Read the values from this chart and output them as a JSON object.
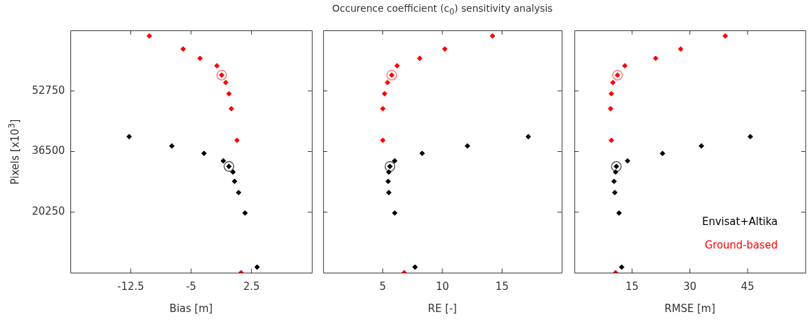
{
  "chart_data": [
    {
      "type": "scatter",
      "xlabel": "Bias [m]",
      "ylabel": "Pixels [x10$^{3}$]",
      "xlim": [
        -20,
        10
      ],
      "xticks": [
        -12.5,
        -5,
        2.5
      ],
      "ylim": [
        4000,
        69000
      ],
      "yticks": [
        20250,
        36500,
        52750
      ],
      "marker": "diamond",
      "legend": false,
      "grid": false,
      "series": [
        {
          "color": "#ff0000",
          "x": [
            -10.2,
            -6.0,
            -3.9,
            -1.8,
            -1.2,
            -0.7,
            -0.3,
            0.0,
            0.7,
            1.2
          ],
          "values": [
            67500,
            64000,
            61500,
            59500,
            57000,
            55000,
            52000,
            48000,
            39500,
            4000
          ]
        },
        {
          "color": "#000000",
          "x": [
            -12.7,
            -7.4,
            -3.4,
            -1.0,
            -0.3,
            0.2,
            0.4,
            0.9,
            1.7,
            3.2
          ],
          "values": [
            40500,
            38000,
            36000,
            34000,
            32500,
            31000,
            28500,
            25500,
            20000,
            5500
          ]
        },
        {
          "color": "#ff6666",
          "marker": "circle",
          "x": [
            -1.2
          ],
          "values": [
            57000
          ]
        },
        {
          "color": "#333333",
          "marker": "circle",
          "x": [
            -0.3
          ],
          "values": [
            32500
          ]
        }
      ]
    },
    {
      "type": "scatter",
      "title": "Occurence coefficient (c$_{0}$) sensitivity analysis",
      "xlabel": "RE [-]",
      "xlim": [
        0,
        20
      ],
      "xticks": [
        5,
        10,
        15
      ],
      "ylim": [
        4000,
        69000
      ],
      "yticks": [
        20250,
        36500,
        52750
      ],
      "tick_labels": "x",
      "marker": "diamond",
      "legend": false,
      "grid": false,
      "series": [
        {
          "color": "#ff0000",
          "x": [
            14.2,
            10.2,
            8.1,
            6.2,
            5.75,
            5.4,
            5.15,
            5.0,
            5.0,
            6.8
          ],
          "values": [
            67500,
            64000,
            61500,
            59500,
            57000,
            55000,
            52000,
            48000,
            39500,
            4000
          ]
        },
        {
          "color": "#000000",
          "x": [
            17.2,
            12.1,
            8.3,
            6.0,
            5.6,
            5.5,
            5.45,
            5.5,
            6.0,
            7.7
          ],
          "values": [
            40500,
            38000,
            36000,
            34000,
            32500,
            31000,
            28500,
            25500,
            20000,
            5500
          ]
        },
        {
          "color": "#ff6666",
          "marker": "circle",
          "x": [
            5.75
          ],
          "values": [
            57000
          ]
        },
        {
          "color": "#333333",
          "marker": "circle",
          "x": [
            5.6
          ],
          "values": [
            32500
          ]
        }
      ]
    },
    {
      "type": "scatter",
      "xlabel": "RMSE [m]",
      "xlim": [
        0,
        60
      ],
      "xticks": [
        15,
        30,
        45
      ],
      "ylim": [
        4000,
        69000
      ],
      "yticks": [
        20250,
        36500,
        52750
      ],
      "tick_labels": "x",
      "marker": "diamond",
      "legend": "bottom right",
      "grid": false,
      "series": [
        {
          "name": "Ground-based",
          "color": "#ff0000",
          "x": [
            39.2,
            27.6,
            21.1,
            13.1,
            11.2,
            10.0,
            9.6,
            9.4,
            9.6,
            10.7
          ],
          "values": [
            67500,
            64000,
            61500,
            59500,
            57000,
            55000,
            52000,
            48000,
            39500,
            4000
          ]
        },
        {
          "name": "Envisat+Altika",
          "color": "#000000",
          "x": [
            45.7,
            33.0,
            22.9,
            13.8,
            10.9,
            10.7,
            10.3,
            10.5,
            11.6,
            12.3
          ],
          "values": [
            40500,
            38000,
            36000,
            34000,
            32500,
            31000,
            28500,
            25500,
            20000,
            5500
          ]
        },
        {
          "color": "#ff6666",
          "marker": "circle",
          "x": [
            11.2
          ],
          "values": [
            57000
          ]
        },
        {
          "color": "#333333",
          "marker": "circle",
          "x": [
            10.9
          ],
          "values": [
            32500
          ]
        }
      ]
    }
  ]
}
